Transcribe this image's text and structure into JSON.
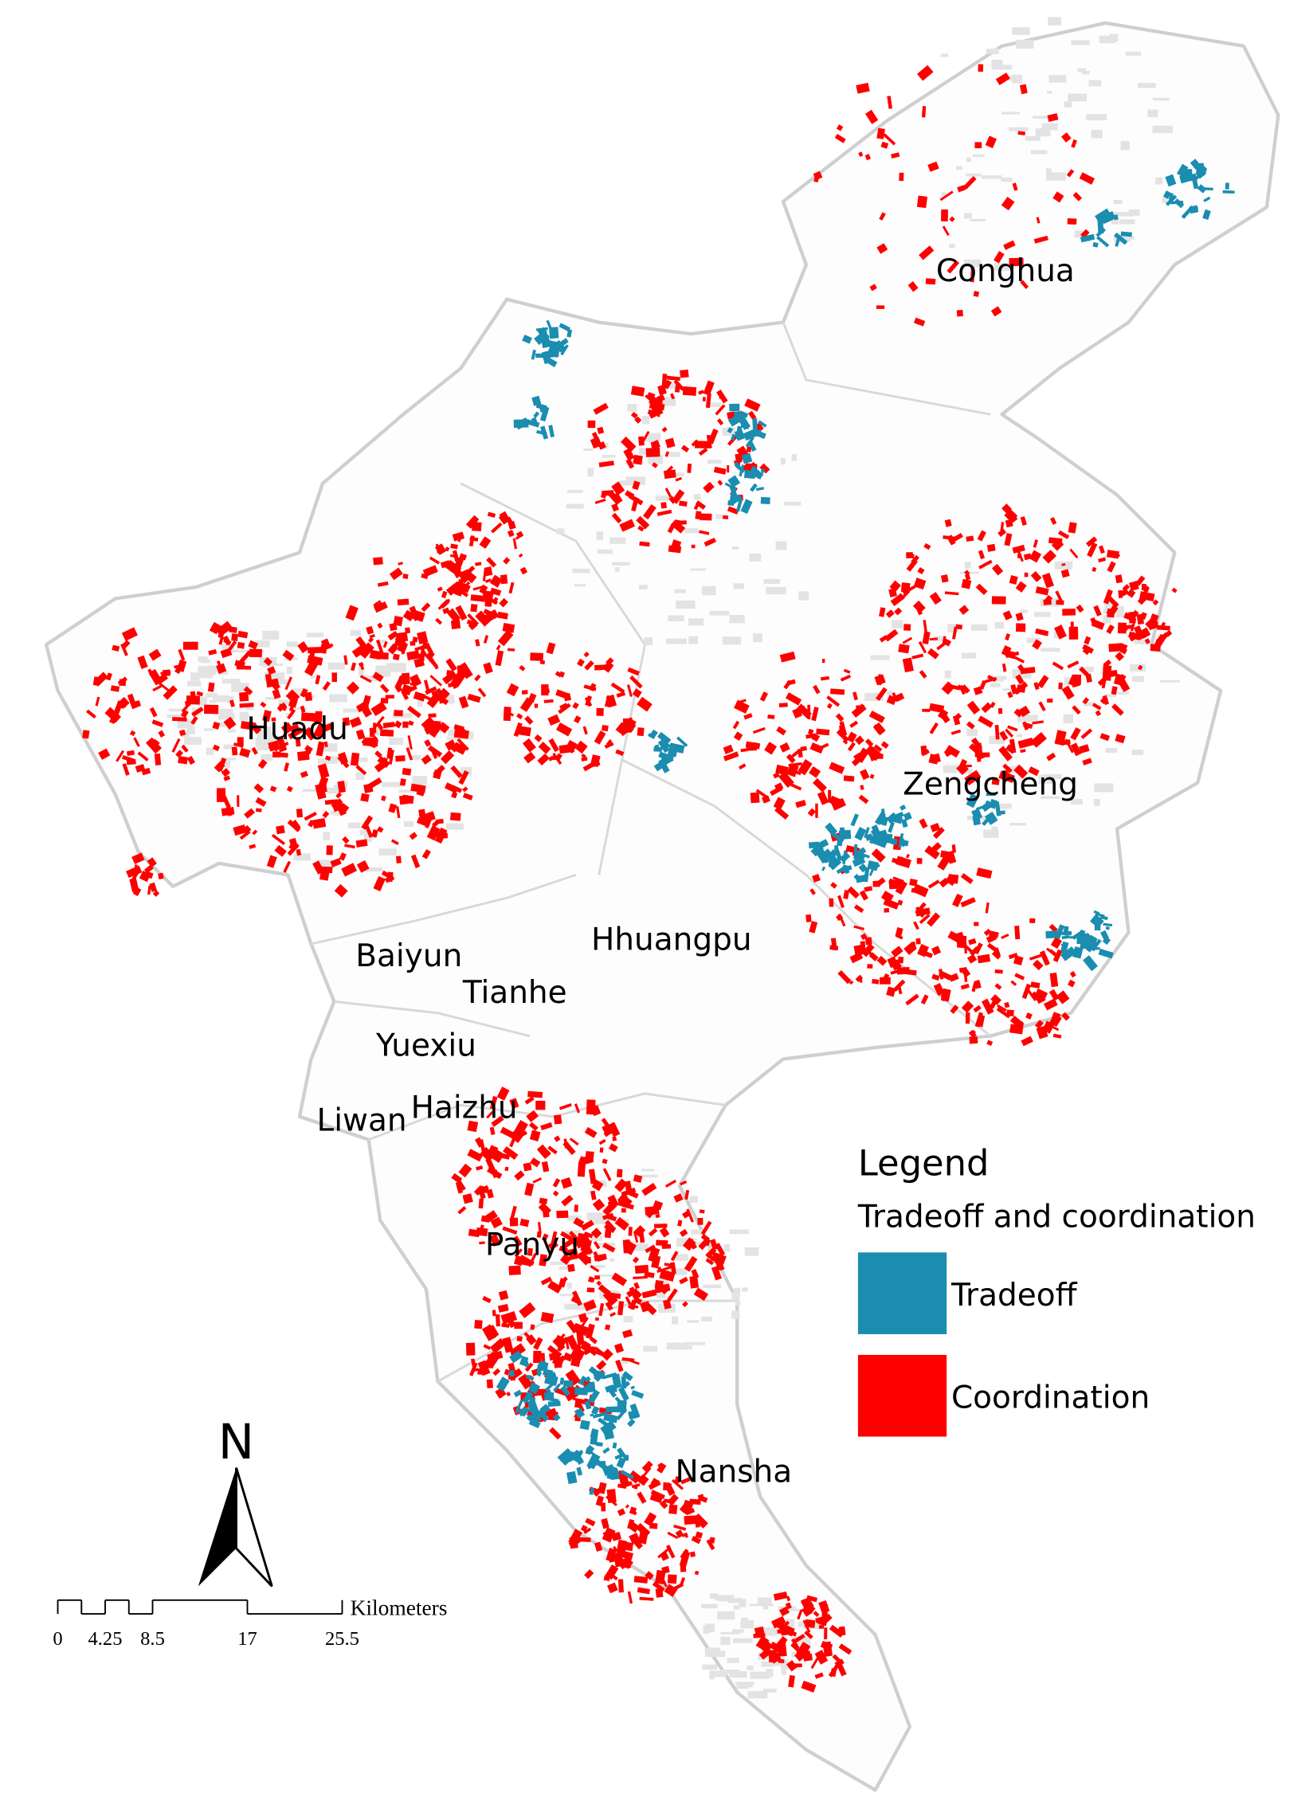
{
  "map": {
    "labels": [
      "Conghua",
      "Huadu",
      "Zengcheng",
      "Baiyun",
      "Hhuangpu",
      "Tianhe",
      "Yuexiu",
      "Haizhu",
      "Liwan",
      "Panyu",
      "Nansha"
    ],
    "legend": {
      "title": "Legend",
      "subtitle": "Tradeoff and coordination",
      "items": [
        {
          "name": "Tradeoff",
          "color": "#1a8db0"
        },
        {
          "name": "Coordination",
          "color": "#ff0000"
        }
      ]
    },
    "north_arrow": "N",
    "scale_bar": {
      "unit": "Kilometers",
      "ticks": [
        0,
        4.25,
        8.5,
        17,
        25.5
      ]
    }
  }
}
